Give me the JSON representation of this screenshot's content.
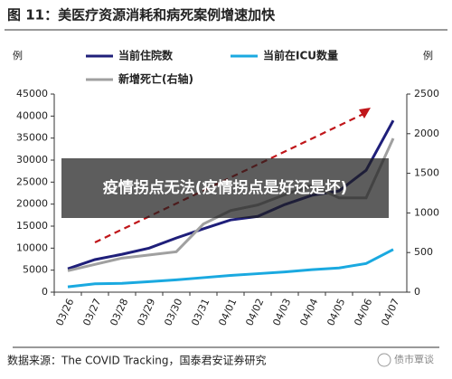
{
  "chart_data": {
    "type": "line",
    "title": "图 11：美医疗资源消耗和病死案例增速加快",
    "y_unit": "例",
    "y2_unit": "例",
    "categories": [
      "03/26",
      "03/27",
      "03/28",
      "03/29",
      "03/30",
      "03/31",
      "04/01",
      "04/02",
      "04/03",
      "04/04",
      "04/05",
      "04/06",
      "04/07"
    ],
    "series": [
      {
        "name": "当前住院数",
        "color": "#1f1f7a",
        "values": [
          5300,
          7400,
          8600,
          10000,
          12300,
          14400,
          16400,
          17200,
          19900,
          22000,
          23000,
          27700,
          39000
        ]
      },
      {
        "name": "当前在ICU数量",
        "color": "#1aa9e0",
        "values": [
          1200,
          1900,
          2000,
          2400,
          2800,
          3300,
          3800,
          4200,
          4600,
          5100,
          5500,
          6500,
          9700
        ]
      },
      {
        "name": "新增死亡(右轴)",
        "color": "#a0a0a0",
        "axis": "y2",
        "values": [
          270,
          350,
          430,
          470,
          510,
          860,
          1030,
          1100,
          1230,
          1350,
          1190,
          1190,
          1940
        ]
      }
    ],
    "ylim": [
      0,
      45000
    ],
    "yticks": [
      0,
      5000,
      10000,
      15000,
      20000,
      25000,
      30000,
      35000,
      40000,
      45000
    ],
    "y2lim": [
      0,
      2500
    ],
    "y2ticks": [
      0,
      500,
      1000,
      1500,
      2000,
      2500
    ]
  },
  "overlay_text": "疫情拐点无法(疫情拐点是好还是坏)",
  "source": "数据来源：The COVID Tracking，国泰君安证券研究",
  "watermark": "债市覃谈"
}
